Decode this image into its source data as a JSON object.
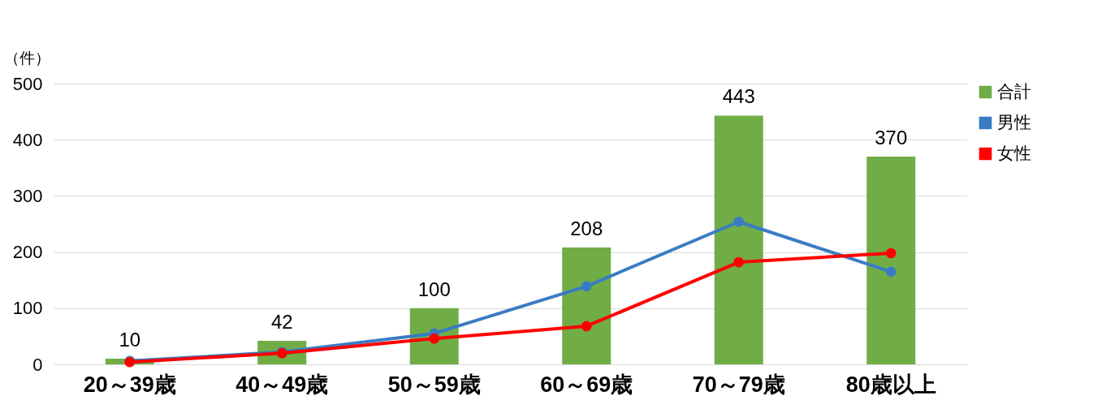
{
  "chart_data": {
    "type": "bar",
    "ylabel": "（件）",
    "categories": [
      "20～39歳",
      "40～49歳",
      "50～59歳",
      "60～69歳",
      "70～79歳",
      "80歳以上"
    ],
    "series": [
      {
        "name": "合計",
        "color": "#70ad47",
        "values": [
          10,
          42,
          100,
          208,
          443,
          370
        ],
        "value_labels": [
          "10",
          "42",
          "100",
          "208",
          "443",
          "370"
        ]
      },
      {
        "name": "男性",
        "type": "line",
        "color": "#3a7cc3",
        "values": [
          6,
          22,
          55,
          139,
          254,
          165
        ]
      },
      {
        "name": "女性",
        "type": "line",
        "color": "#ff0000",
        "values": [
          4,
          20,
          46,
          68,
          182,
          198
        ]
      }
    ],
    "ylim": [
      0,
      500
    ],
    "yticks": [
      0,
      100,
      200,
      300,
      400,
      500
    ],
    "grid": "y",
    "legend": "right",
    "marker": "circle"
  }
}
